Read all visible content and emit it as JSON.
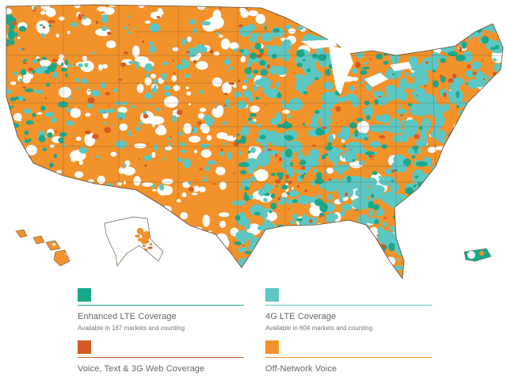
{
  "map": {
    "regions": [
      "contiguous-us",
      "alaska",
      "hawaii",
      "puerto-rico"
    ]
  },
  "colors": {
    "enhanced_lte": "#19a88a",
    "lte_4g": "#5cc7c3",
    "voice_3g": "#d35a24",
    "off_network": "#f2922a",
    "state_border": "#5a4a3a",
    "no_coverage": "#ffffff"
  },
  "legend": {
    "items": [
      {
        "key": "enhanced_lte",
        "title": "Enhanced LTE Coverage",
        "subtitle": "Available in 167 markets and counting"
      },
      {
        "key": "lte_4g",
        "title": "4G LTE Coverage",
        "subtitle": "Available in 604 markets and counting"
      },
      {
        "key": "voice_3g",
        "title": "Voice, Text & 3G Web Coverage",
        "subtitle": ""
      },
      {
        "key": "off_network",
        "title": "Off-Network Voice",
        "subtitle": ""
      }
    ]
  }
}
